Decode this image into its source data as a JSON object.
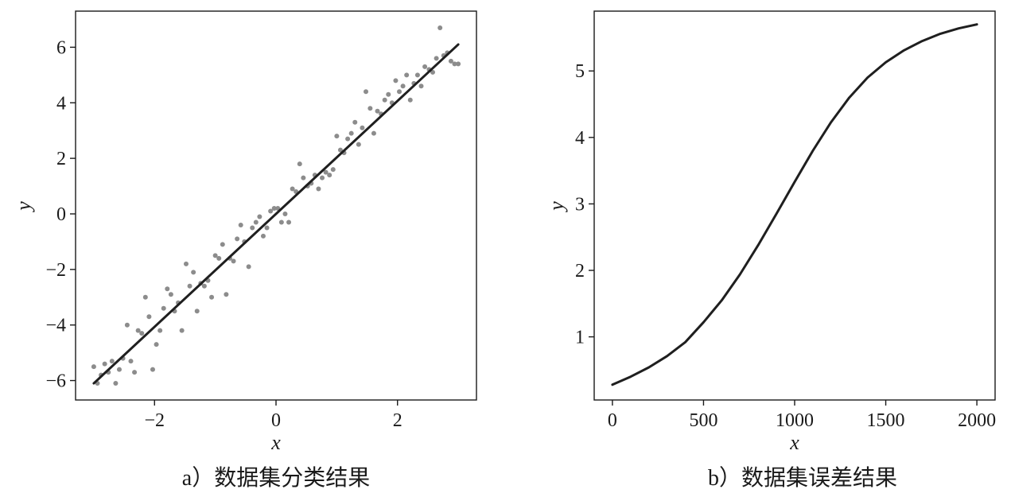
{
  "colors": {
    "fit_line": "#1f1f1f",
    "points": "#8c8c8c",
    "error_curve": "#1f1f1f"
  },
  "panels": {
    "a": {
      "caption": "a）数据集分类结果",
      "xlabel": "x",
      "ylabel": "y"
    },
    "b": {
      "caption": "b）数据集误差结果",
      "xlabel": "x",
      "ylabel": "y"
    }
  },
  "chart_data": [
    {
      "type": "scatter",
      "xlabel": "x",
      "ylabel": "y",
      "xlim": [
        -3.3,
        3.3
      ],
      "ylim": [
        -6.7,
        7.3
      ],
      "xticks": [
        -2,
        0,
        2
      ],
      "yticks": [
        -6,
        -4,
        -2,
        0,
        2,
        4,
        6
      ],
      "grid": false,
      "fit_line": {
        "x": [
          -3.0,
          3.0
        ],
        "y": [
          -6.1,
          6.1
        ]
      },
      "points": {
        "x": [
          -3.0,
          -2.94,
          -2.88,
          -2.82,
          -2.76,
          -2.7,
          -2.64,
          -2.58,
          -2.52,
          -2.45,
          -2.39,
          -2.33,
          -2.27,
          -2.21,
          -2.15,
          -2.09,
          -2.03,
          -1.97,
          -1.91,
          -1.85,
          -1.79,
          -1.73,
          -1.67,
          -1.61,
          -1.55,
          -1.48,
          -1.42,
          -1.36,
          -1.3,
          -1.24,
          -1.18,
          -1.12,
          -1.06,
          -1.0,
          -0.94,
          -0.88,
          -0.82,
          -0.76,
          -0.7,
          -0.64,
          -0.58,
          -0.52,
          -0.45,
          -0.39,
          -0.33,
          -0.27,
          -0.21,
          -0.15,
          -0.09,
          -0.03,
          0.03,
          0.09,
          0.15,
          0.21,
          0.27,
          0.33,
          0.39,
          0.45,
          0.52,
          0.58,
          0.64,
          0.7,
          0.76,
          0.82,
          0.88,
          0.94,
          1.0,
          1.06,
          1.12,
          1.18,
          1.24,
          1.3,
          1.36,
          1.42,
          1.48,
          1.55,
          1.61,
          1.67,
          1.73,
          1.79,
          1.85,
          1.91,
          1.97,
          2.03,
          2.09,
          2.15,
          2.21,
          2.27,
          2.33,
          2.39,
          2.45,
          2.52,
          2.58,
          2.64,
          2.7,
          2.76,
          2.82,
          2.88,
          2.94,
          3.0
        ],
        "y": [
          -5.5,
          -6.1,
          -5.8,
          -5.4,
          -5.7,
          -5.3,
          -6.1,
          -5.6,
          -5.2,
          -4.0,
          -5.3,
          -5.7,
          -4.2,
          -4.3,
          -3.0,
          -3.7,
          -5.6,
          -4.7,
          -4.2,
          -3.4,
          -2.7,
          -2.9,
          -3.5,
          -3.2,
          -4.2,
          -1.8,
          -2.6,
          -2.1,
          -3.5,
          -2.5,
          -2.6,
          -2.4,
          -3.0,
          -1.5,
          -1.6,
          -1.1,
          -2.9,
          -1.6,
          -1.7,
          -0.9,
          -0.4,
          -1.0,
          -1.9,
          -0.5,
          -0.3,
          -0.1,
          -0.8,
          -0.5,
          0.1,
          0.2,
          0.2,
          -0.3,
          0.0,
          -0.3,
          0.9,
          0.8,
          1.8,
          1.3,
          1.0,
          1.1,
          1.4,
          0.9,
          1.3,
          1.5,
          1.4,
          1.6,
          2.8,
          2.3,
          2.2,
          2.7,
          2.9,
          3.3,
          2.5,
          3.1,
          4.4,
          3.8,
          2.9,
          3.7,
          3.6,
          4.1,
          4.3,
          4.0,
          4.8,
          4.4,
          4.6,
          5.0,
          4.1,
          4.7,
          5.0,
          4.6,
          5.3,
          5.2,
          5.1,
          5.6,
          6.7,
          5.7,
          5.8,
          5.5,
          5.4,
          5.4
        ]
      }
    },
    {
      "type": "line",
      "xlabel": "x",
      "ylabel": "y",
      "xlim": [
        -100,
        2100
      ],
      "ylim": [
        0.05,
        5.9
      ],
      "xticks": [
        0,
        500,
        1000,
        1500,
        2000
      ],
      "yticks": [
        1,
        2,
        3,
        4,
        5
      ],
      "grid": false,
      "x": [
        0,
        100,
        200,
        300,
        400,
        500,
        600,
        700,
        800,
        900,
        1000,
        1100,
        1200,
        1300,
        1400,
        1500,
        1600,
        1700,
        1800,
        1900,
        2000
      ],
      "y": [
        0.28,
        0.4,
        0.54,
        0.71,
        0.92,
        1.22,
        1.55,
        1.94,
        2.38,
        2.85,
        3.33,
        3.8,
        4.23,
        4.6,
        4.9,
        5.13,
        5.31,
        5.45,
        5.56,
        5.64,
        5.7
      ]
    }
  ]
}
